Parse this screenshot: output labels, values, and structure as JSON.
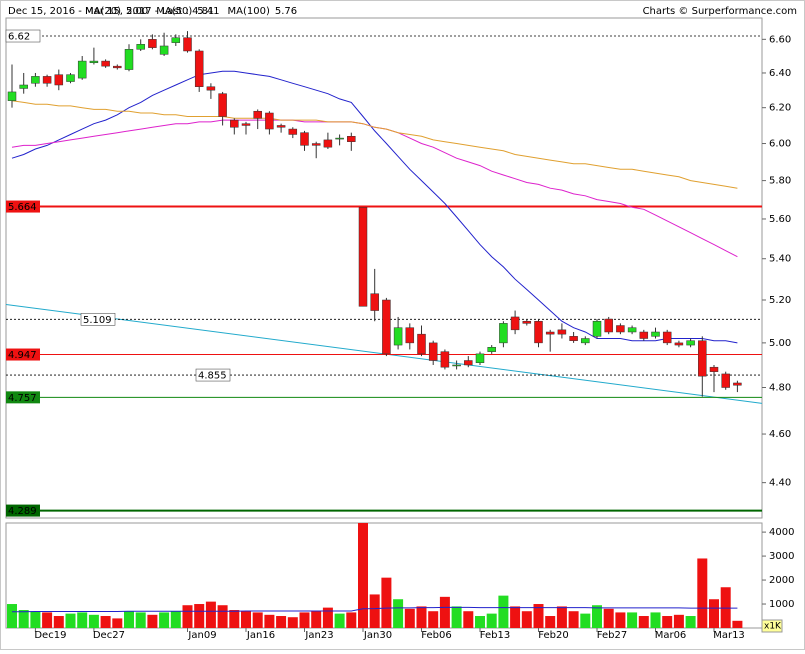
{
  "chart_data": {
    "type": "candlestick",
    "title": "Dec 15, 2016 - Mar 15, 2017 - Last : 4.81",
    "credit": "Charts © Surperformance.com",
    "categories": [
      null,
      null,
      "Dec19",
      null,
      null,
      null,
      null,
      "Dec27",
      null,
      null,
      null,
      null,
      null,
      null,
      null,
      "Jan09",
      null,
      null,
      null,
      null,
      "Jan16",
      null,
      null,
      null,
      null,
      "Jan23",
      null,
      null,
      null,
      null,
      "Jan30",
      null,
      null,
      null,
      null,
      "Feb06",
      null,
      null,
      null,
      null,
      "Feb13",
      null,
      null,
      null,
      null,
      "Feb20",
      null,
      null,
      null,
      null,
      "Feb27",
      null,
      null,
      null,
      null,
      "Mar06",
      null,
      null,
      null,
      null,
      "Mar13",
      null,
      null
    ],
    "open": [
      6.24,
      6.31,
      6.34,
      6.38,
      6.39,
      6.35,
      6.37,
      6.46,
      6.47,
      6.44,
      6.42,
      6.54,
      6.6,
      6.51,
      6.58,
      6.61,
      6.53,
      6.32,
      6.28,
      6.13,
      6.11,
      6.18,
      6.17,
      6.1,
      6.08,
      6.06,
      6.0,
      6.02,
      6.03,
      6.04,
      5.66,
      5.23,
      5.2,
      4.99,
      5.07,
      5.04,
      5.0,
      4.96,
      4.9,
      4.92,
      4.91,
      4.96,
      5.0,
      5.12,
      5.1,
      5.1,
      5.05,
      5.06,
      5.03,
      5.0,
      5.03,
      5.11,
      5.08,
      5.05,
      5.05,
      5.03,
      5.05,
      5.0,
      4.99,
      5.01,
      4.89,
      4.86,
      4.82
    ],
    "high": [
      6.45,
      6.4,
      6.4,
      6.39,
      6.42,
      6.4,
      6.5,
      6.55,
      6.48,
      6.45,
      6.57,
      6.6,
      6.63,
      6.64,
      6.63,
      6.65,
      6.54,
      6.34,
      6.29,
      6.14,
      6.12,
      6.19,
      6.18,
      6.11,
      6.09,
      6.07,
      6.01,
      6.06,
      6.05,
      6.06,
      5.66,
      5.35,
      5.21,
      5.12,
      5.09,
      5.08,
      5.01,
      4.97,
      4.92,
      4.94,
      4.96,
      4.99,
      5.1,
      5.15,
      5.11,
      5.11,
      5.06,
      5.09,
      5.05,
      5.03,
      5.11,
      5.12,
      5.09,
      5.08,
      5.06,
      5.07,
      5.06,
      5.01,
      5.02,
      5.03,
      4.9,
      4.87,
      4.83
    ],
    "low": [
      6.2,
      6.28,
      6.32,
      6.32,
      6.3,
      6.34,
      6.36,
      6.45,
      6.43,
      6.42,
      6.41,
      6.53,
      6.54,
      6.5,
      6.56,
      6.52,
      6.29,
      6.25,
      6.1,
      6.05,
      6.05,
      6.08,
      6.05,
      6.06,
      6.03,
      5.96,
      5.92,
      5.97,
      5.99,
      5.96,
      5.17,
      5.1,
      4.94,
      4.97,
      4.97,
      4.94,
      4.9,
      4.88,
      4.88,
      4.89,
      4.9,
      4.95,
      4.98,
      5.04,
      5.08,
      4.98,
      4.96,
      5.02,
      5.0,
      4.99,
      5.02,
      5.04,
      5.04,
      5.04,
      5.01,
      5.02,
      4.99,
      4.98,
      4.98,
      4.76,
      4.78,
      4.79,
      4.78
    ],
    "close": [
      6.29,
      6.33,
      6.38,
      6.34,
      6.33,
      6.39,
      6.47,
      6.47,
      6.44,
      6.43,
      6.54,
      6.57,
      6.55,
      6.56,
      6.61,
      6.53,
      6.32,
      6.3,
      6.15,
      6.09,
      6.1,
      6.14,
      6.08,
      6.09,
      6.05,
      5.99,
      5.99,
      5.98,
      6.03,
      6.01,
      5.17,
      5.15,
      4.95,
      5.07,
      5.0,
      4.95,
      4.92,
      4.89,
      4.9,
      4.9,
      4.95,
      4.98,
      5.09,
      5.06,
      5.09,
      5.0,
      5.04,
      5.04,
      5.01,
      5.02,
      5.1,
      5.05,
      5.05,
      5.07,
      5.02,
      5.05,
      5.0,
      4.99,
      5.01,
      4.85,
      4.87,
      4.8,
      4.81
    ],
    "up_color": "#22dd22",
    "down_color": "#ee1111",
    "log_scale": true,
    "ylim": [
      4.26,
      6.73
    ],
    "yticks": [
      {
        "value": 4.4,
        "label": "4.40"
      },
      {
        "value": 4.6,
        "label": "4.60"
      },
      {
        "value": 4.8,
        "label": "4.80"
      },
      {
        "value": 5.0,
        "label": "5.00"
      },
      {
        "value": 5.2,
        "label": "5.20"
      },
      {
        "value": 5.4,
        "label": "5.40"
      },
      {
        "value": 5.6,
        "label": "5.60"
      },
      {
        "value": 5.8,
        "label": "5.80"
      },
      {
        "value": 6.0,
        "label": "6.00"
      },
      {
        "value": 6.2,
        "label": "6.20"
      },
      {
        "value": 6.4,
        "label": "6.40"
      },
      {
        "value": 6.6,
        "label": "6.60"
      }
    ],
    "series": [
      {
        "name": "MA(20)",
        "color": "#2222cc",
        "last_label": "5.00",
        "values": [
          5.92,
          5.94,
          5.97,
          5.99,
          6.02,
          6.05,
          6.08,
          6.11,
          6.13,
          6.16,
          6.2,
          6.23,
          6.27,
          6.3,
          6.33,
          6.36,
          6.39,
          6.4,
          6.41,
          6.41,
          6.4,
          6.39,
          6.38,
          6.36,
          6.34,
          6.32,
          6.3,
          6.28,
          6.25,
          6.23,
          6.15,
          6.07,
          6.0,
          5.93,
          5.86,
          5.8,
          5.74,
          5.68,
          5.61,
          5.54,
          5.47,
          5.41,
          5.36,
          5.3,
          5.25,
          5.2,
          5.15,
          5.1,
          5.07,
          5.05,
          5.02,
          5.02,
          5.02,
          5.01,
          5.01,
          5.01,
          5.02,
          5.02,
          5.02,
          5.02,
          5.01,
          5.01,
          5.0
        ]
      },
      {
        "name": "MA(50)",
        "color": "#dd22cc",
        "last_label": "5.41",
        "values": [
          5.98,
          5.99,
          5.99,
          6.0,
          6.01,
          6.02,
          6.03,
          6.04,
          6.05,
          6.06,
          6.07,
          6.08,
          6.09,
          6.1,
          6.11,
          6.11,
          6.12,
          6.12,
          6.13,
          6.13,
          6.13,
          6.13,
          6.13,
          6.13,
          6.13,
          6.12,
          6.12,
          6.12,
          6.12,
          6.12,
          6.11,
          6.09,
          6.08,
          6.06,
          6.03,
          6.0,
          5.98,
          5.95,
          5.92,
          5.9,
          5.88,
          5.85,
          5.83,
          5.81,
          5.79,
          5.78,
          5.76,
          5.75,
          5.73,
          5.72,
          5.7,
          5.69,
          5.68,
          5.66,
          5.65,
          5.62,
          5.59,
          5.56,
          5.53,
          5.5,
          5.47,
          5.44,
          5.41
        ]
      },
      {
        "name": "MA(100)",
        "color": "#e0a030",
        "last_label": "5.76",
        "values": [
          6.24,
          6.23,
          6.22,
          6.22,
          6.21,
          6.21,
          6.2,
          6.19,
          6.19,
          6.18,
          6.18,
          6.17,
          6.17,
          6.16,
          6.16,
          6.15,
          6.15,
          6.15,
          6.15,
          6.14,
          6.14,
          6.14,
          6.14,
          6.13,
          6.13,
          6.13,
          6.13,
          6.12,
          6.12,
          6.12,
          6.11,
          6.09,
          6.08,
          6.06,
          6.05,
          6.04,
          6.02,
          6.01,
          6.0,
          5.99,
          5.98,
          5.97,
          5.96,
          5.94,
          5.93,
          5.92,
          5.91,
          5.9,
          5.89,
          5.89,
          5.88,
          5.87,
          5.86,
          5.86,
          5.85,
          5.84,
          5.83,
          5.82,
          5.8,
          5.79,
          5.78,
          5.77,
          5.76
        ]
      }
    ],
    "levels": [
      {
        "value": 6.62,
        "color": "#000000",
        "style": "dotted"
      },
      {
        "value": 5.664,
        "color": "#ee1111",
        "style": "thick"
      },
      {
        "value": 5.109,
        "color": "#000000",
        "style": "dotted"
      },
      {
        "value": 4.947,
        "color": "#ee1111",
        "style": "solid"
      },
      {
        "value": 4.855,
        "color": "#000000",
        "style": "dotted"
      },
      {
        "value": 4.757,
        "color": "#118811",
        "style": "solid"
      },
      {
        "value": 4.289,
        "color": "#006600",
        "style": "thick"
      }
    ],
    "trendline": {
      "color": "#22aacc",
      "start": 5.175,
      "end": 4.745
    },
    "volume": {
      "values": [
        1000,
        750,
        700,
        650,
        500,
        600,
        650,
        550,
        500,
        400,
        700,
        650,
        550,
        650,
        700,
        950,
        1000,
        1100,
        950,
        750,
        700,
        650,
        550,
        500,
        450,
        650,
        700,
        850,
        600,
        650,
        4380,
        1400,
        2100,
        1200,
        800,
        900,
        700,
        1300,
        900,
        700,
        500,
        600,
        1350,
        900,
        700,
        1000,
        500,
        900,
        700,
        600,
        950,
        800,
        650,
        650,
        500,
        650,
        500,
        550,
        500,
        2900,
        1200,
        1700,
        300
      ],
      "ma": {
        "color": "#2222cc",
        "values": [
          680,
          680,
          690,
          690,
          690,
          690,
          690,
          690,
          690,
          690,
          700,
          700,
          700,
          700,
          700,
          700,
          700,
          700,
          700,
          700,
          710,
          710,
          710,
          710,
          710,
          710,
          710,
          710,
          710,
          710,
          800,
          810,
          830,
          840,
          840,
          850,
          850,
          860,
          860,
          860,
          850,
          850,
          850,
          850,
          850,
          850,
          850,
          850,
          850,
          850,
          840,
          840,
          840,
          840,
          840,
          840,
          840,
          840,
          830,
          830,
          830,
          830,
          830
        ]
      },
      "ylim": [
        0,
        4380
      ],
      "yticks": [
        1000,
        2000,
        3000,
        4000
      ],
      "unit": "x1K"
    }
  }
}
